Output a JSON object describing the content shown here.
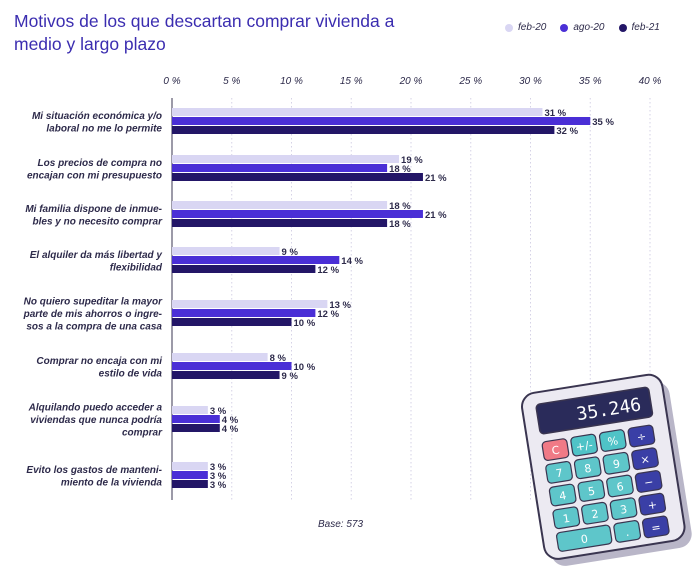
{
  "title": "Motivos de los que descartan comprar vivienda a medio y largo plazo",
  "base_note": "Base: 573",
  "calculator_display": "35.246",
  "calculator_keys": [
    "C",
    "+/-",
    "%",
    "÷",
    "7",
    "8",
    "9",
    "×",
    "4",
    "5",
    "6",
    "−",
    "1",
    "2",
    "3",
    "+",
    "0",
    ".",
    "="
  ],
  "colors": {
    "feb-20": "#d9d6f3",
    "ago-20": "#4a2fd6",
    "feb-21": "#231667",
    "title": "#3b2db0"
  },
  "chart_data": {
    "type": "bar",
    "orientation": "horizontal",
    "title": "Motivos de los que descartan comprar vivienda a medio y largo plazo",
    "xlim": [
      0,
      40
    ],
    "x_ticks": [
      "0 %",
      "5 %",
      "10 %",
      "15 %",
      "20 %",
      "25 %",
      "30 %",
      "35 %",
      "40 %"
    ],
    "grid": true,
    "legend_position": "top-right",
    "categories": [
      [
        "Mi situación económica y/o",
        "laboral no me lo permite"
      ],
      [
        "Los precios de compra no",
        "encajan con mi presupuesto"
      ],
      [
        "Mi familia dispone de inmue-",
        "bles y no necesito comprar"
      ],
      [
        "El alquiler da más libertad y",
        "flexibilidad"
      ],
      [
        "No quiero supeditar la mayor",
        "parte de mis ahorros o ingre-",
        "sos a la compra de una casa"
      ],
      [
        "Comprar no encaja con mi",
        "estilo de vida"
      ],
      [
        "Alquilando puedo acceder a",
        "viviendas que nunca podría",
        "comprar"
      ],
      [
        "Evito los gastos de manteni-",
        "miento de la vivienda"
      ]
    ],
    "series": [
      {
        "name": "feb-20",
        "values": [
          31,
          19,
          18,
          9,
          13,
          8,
          3,
          3
        ],
        "labels": [
          "31 %",
          "19 %",
          "18 %",
          "9 %",
          "13 %",
          "8 %",
          "3 %",
          "3 %"
        ]
      },
      {
        "name": "ago-20",
        "values": [
          35,
          18,
          21,
          14,
          12,
          10,
          4,
          3
        ],
        "labels": [
          "35 %",
          "18 %",
          "21 %",
          "14 %",
          "12 %",
          "10 %",
          "4 %",
          "3 %"
        ]
      },
      {
        "name": "feb-21",
        "values": [
          32,
          21,
          18,
          12,
          10,
          9,
          4,
          3
        ],
        "labels": [
          "32 %",
          "21 %",
          "18 %",
          "12 %",
          "10 %",
          "9 %",
          "4 %",
          "3 %"
        ]
      }
    ]
  }
}
